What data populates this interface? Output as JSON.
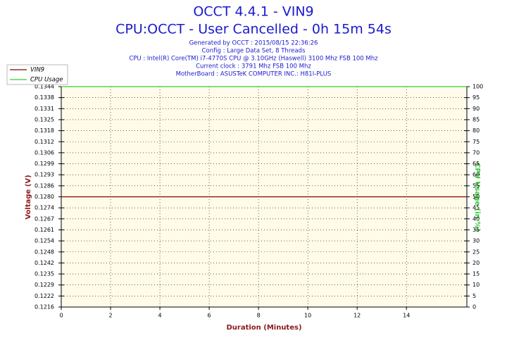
{
  "chart_data": {
    "type": "line",
    "title": "OCCT 4.4.1 - VIN9",
    "subtitle": "CPU:OCCT - User Cancelled - 0h 15m 54s",
    "info": [
      "Generated by OCCT : 2015/08/15 22:36:26",
      "Config : Large Data Set, 8 Threads",
      "CPU : Intel(R) Core(TM) i7-4770S CPU @ 3.10GHz (Haswell) 3100 Mhz FSB 100 Mhz",
      "Current clock : 3791 Mhz FSB 100 Mhz",
      "MotherBoard : ASUSTeK COMPUTER INC.: H81I-PLUS"
    ],
    "x_label": "Duration (Minutes)",
    "y_label": "Voltage (V)",
    "y2_label": "CPU Usage (in %)",
    "x": [
      0,
      16.45
    ],
    "series": [
      {
        "name": "VIN9",
        "color": "#800000",
        "values": [
          0.128,
          0.128
        ]
      },
      {
        "name": "CPU Usage",
        "color": "#33cc33",
        "axis": "y2",
        "values": [
          100,
          100
        ]
      }
    ],
    "xlim": [
      0,
      16.45
    ],
    "xticks": [
      0,
      2,
      4,
      6,
      8,
      10,
      12,
      14
    ],
    "ylim": [
      0.1216,
      0.1344
    ],
    "yticks": [
      {
        "value": 0.1216,
        "label": "0.1216"
      },
      {
        "value": 0.12224,
        "label": "0.1222"
      },
      {
        "value": 0.12288,
        "label": "0.1229"
      },
      {
        "value": 0.12352,
        "label": "0.1235"
      },
      {
        "value": 0.12416,
        "label": "0.1242"
      },
      {
        "value": 0.1248,
        "label": "0.1248"
      },
      {
        "value": 0.12544,
        "label": "0.1254"
      },
      {
        "value": 0.12608,
        "label": "0.1261"
      },
      {
        "value": 0.12672,
        "label": "0.1267"
      },
      {
        "value": 0.12736,
        "label": "0.1274"
      },
      {
        "value": 0.128,
        "label": "0.1280"
      },
      {
        "value": 0.12864,
        "label": "0.1286"
      },
      {
        "value": 0.12928,
        "label": "0.1293"
      },
      {
        "value": 0.12992,
        "label": "0.1299"
      },
      {
        "value": 0.13056,
        "label": "0.1306"
      },
      {
        "value": 0.1312,
        "label": "0.1312"
      },
      {
        "value": 0.13184,
        "label": "0.1318"
      },
      {
        "value": 0.13248,
        "label": "0.1325"
      },
      {
        "value": 0.13312,
        "label": "0.1331"
      },
      {
        "value": 0.13376,
        "label": "0.1338"
      },
      {
        "value": 0.1344,
        "label": "0.1344"
      }
    ],
    "y2lim": [
      0,
      100
    ],
    "y2ticks": [
      0,
      5,
      10,
      15,
      20,
      25,
      30,
      35,
      40,
      45,
      50,
      55,
      60,
      65,
      70,
      75,
      80,
      85,
      90,
      95,
      100
    ],
    "grid": true,
    "legend": "top-left"
  }
}
